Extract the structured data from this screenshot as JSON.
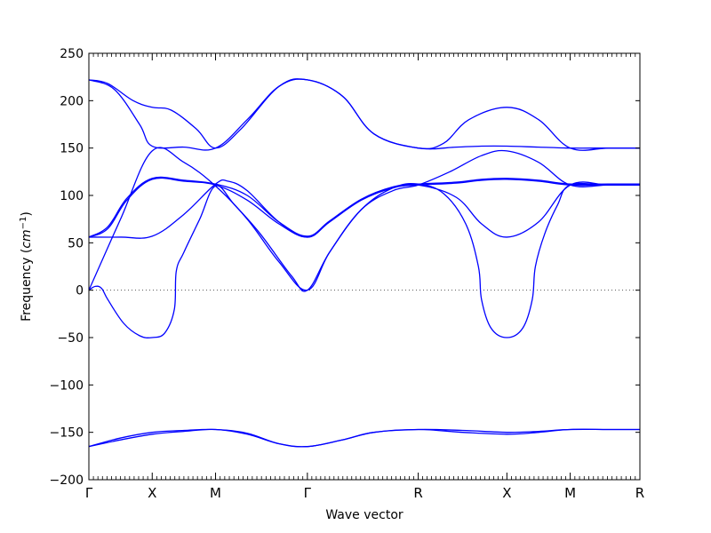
{
  "chart_data": {
    "type": "line",
    "title": "",
    "xlabel": "Wave vector",
    "ylabel_text": "Frequency (",
    "ylabel_unit_base": "cm",
    "ylabel_unit_exp": "−1",
    "ylabel_close": ")",
    "ylim": [
      -200,
      250
    ],
    "yticks": [
      250,
      200,
      150,
      100,
      50,
      0,
      -50,
      -100,
      -150,
      -200
    ],
    "ytick_labels": [
      "250",
      "200",
      "150",
      "100",
      "50",
      "0",
      "−50",
      "−100",
      "−150",
      "−200"
    ],
    "xlim": [
      0,
      8.7
    ],
    "high_symmetry_points": [
      {
        "label": "Γ",
        "x": 0
      },
      {
        "label": "X",
        "x": 1.0
      },
      {
        "label": "M",
        "x": 2.0
      },
      {
        "label": "Γ",
        "x": 3.45
      },
      {
        "label": "R",
        "x": 5.2
      },
      {
        "label": "X",
        "x": 6.6
      },
      {
        "label": "M",
        "x": 7.6
      },
      {
        "label": "R",
        "x": 8.7
      }
    ],
    "zero_line": true,
    "line_color": "#0000ff",
    "series": [
      {
        "values": [
          [
            0,
            -165
          ],
          [
            0.5,
            -158
          ],
          [
            1.0,
            -152
          ],
          [
            1.5,
            -149
          ],
          [
            2.0,
            -147
          ],
          [
            2.5,
            -152
          ],
          [
            3.0,
            -162
          ],
          [
            3.45,
            -165
          ],
          [
            4.0,
            -158
          ],
          [
            4.5,
            -150
          ],
          [
            5.2,
            -147
          ],
          [
            5.9,
            -150
          ],
          [
            6.6,
            -152
          ],
          [
            7.1,
            -150
          ],
          [
            7.6,
            -147
          ],
          [
            8.2,
            -147
          ],
          [
            8.7,
            -147
          ]
        ]
      },
      {
        "values": [
          [
            0,
            -165
          ],
          [
            0.5,
            -156
          ],
          [
            1.0,
            -150
          ],
          [
            1.5,
            -148
          ],
          [
            2.0,
            -147
          ],
          [
            2.5,
            -151
          ],
          [
            3.0,
            -162
          ],
          [
            3.45,
            -165
          ],
          [
            4.0,
            -158
          ],
          [
            4.5,
            -150
          ],
          [
            5.2,
            -147
          ],
          [
            5.9,
            -148
          ],
          [
            6.6,
            -150
          ],
          [
            7.1,
            -149
          ],
          [
            7.6,
            -147
          ],
          [
            8.2,
            -147
          ],
          [
            8.7,
            -147
          ]
        ]
      },
      {
        "values": [
          [
            0,
            0
          ],
          [
            0.1,
            4
          ],
          [
            0.2,
            2
          ],
          [
            0.3,
            -10
          ],
          [
            0.55,
            -35
          ],
          [
            0.8,
            -48
          ],
          [
            1.0,
            -50
          ],
          [
            1.2,
            -45
          ],
          [
            1.35,
            -20
          ],
          [
            1.38,
            20
          ],
          [
            1.5,
            40
          ],
          [
            1.75,
            75
          ],
          [
            2.0,
            110
          ],
          [
            2.3,
            90
          ],
          [
            2.7,
            60
          ],
          [
            3.2,
            15
          ],
          [
            3.45,
            0
          ],
          [
            3.8,
            40
          ],
          [
            4.3,
            85
          ],
          [
            4.8,
            108
          ],
          [
            5.2,
            112
          ],
          [
            5.6,
            102
          ],
          [
            5.95,
            70
          ],
          [
            6.15,
            25
          ],
          [
            6.2,
            -10
          ],
          [
            6.35,
            -40
          ],
          [
            6.6,
            -50
          ],
          [
            6.85,
            -40
          ],
          [
            7.0,
            -10
          ],
          [
            7.05,
            25
          ],
          [
            7.2,
            60
          ],
          [
            7.4,
            90
          ],
          [
            7.6,
            111
          ],
          [
            8.2,
            111
          ],
          [
            8.7,
            111
          ]
        ]
      },
      {
        "values": [
          [
            0,
            0
          ],
          [
            0.5,
            75
          ],
          [
            1.0,
            147
          ],
          [
            1.5,
            135
          ],
          [
            2.0,
            110
          ],
          [
            2.5,
            75
          ],
          [
            3.0,
            30
          ],
          [
            3.45,
            0
          ],
          [
            3.8,
            40
          ],
          [
            4.3,
            85
          ],
          [
            4.8,
            105
          ],
          [
            5.2,
            111
          ],
          [
            5.7,
            125
          ],
          [
            6.2,
            142
          ],
          [
            6.6,
            147
          ],
          [
            7.1,
            135
          ],
          [
            7.6,
            111
          ],
          [
            8.2,
            111
          ],
          [
            8.7,
            111
          ]
        ]
      },
      {
        "values": [
          [
            0,
            56
          ],
          [
            0.5,
            56
          ],
          [
            1.0,
            57
          ],
          [
            1.5,
            80
          ],
          [
            2.0,
            112
          ],
          [
            2.2,
            115
          ],
          [
            2.5,
            105
          ],
          [
            3.0,
            72
          ],
          [
            3.45,
            56
          ],
          [
            3.8,
            72
          ],
          [
            4.3,
            95
          ],
          [
            4.8,
            108
          ],
          [
            5.2,
            111
          ],
          [
            5.8,
            98
          ],
          [
            6.2,
            70
          ],
          [
            6.6,
            56
          ],
          [
            7.1,
            72
          ],
          [
            7.6,
            111
          ],
          [
            8.2,
            111
          ],
          [
            8.7,
            111
          ]
        ]
      },
      {
        "values": [
          [
            0,
            56
          ],
          [
            0.3,
            65
          ],
          [
            0.6,
            95
          ],
          [
            1.0,
            117
          ],
          [
            1.5,
            115
          ],
          [
            2.0,
            111
          ],
          [
            2.5,
            95
          ],
          [
            3.0,
            70
          ],
          [
            3.45,
            56
          ],
          [
            3.8,
            72
          ],
          [
            4.3,
            95
          ],
          [
            4.8,
            108
          ],
          [
            5.2,
            111
          ],
          [
            5.8,
            113
          ],
          [
            6.2,
            116
          ],
          [
            6.6,
            117
          ],
          [
            7.1,
            115
          ],
          [
            7.6,
            111
          ],
          [
            8.2,
            111
          ],
          [
            8.7,
            111
          ]
        ]
      },
      {
        "values": [
          [
            0,
            56
          ],
          [
            0.3,
            67
          ],
          [
            0.6,
            97
          ],
          [
            1.0,
            118
          ],
          [
            1.5,
            116
          ],
          [
            2.0,
            112
          ],
          [
            2.5,
            100
          ],
          [
            3.0,
            72
          ],
          [
            3.45,
            57
          ],
          [
            3.8,
            73
          ],
          [
            4.3,
            96
          ],
          [
            4.8,
            109
          ],
          [
            5.2,
            112
          ],
          [
            5.8,
            114
          ],
          [
            6.2,
            117
          ],
          [
            6.6,
            118
          ],
          [
            7.1,
            116
          ],
          [
            7.6,
            112
          ],
          [
            8.2,
            112
          ],
          [
            8.7,
            112
          ]
        ]
      },
      {
        "values": [
          [
            0,
            222
          ],
          [
            0.4,
            212
          ],
          [
            0.8,
            175
          ],
          [
            1.0,
            152
          ],
          [
            1.5,
            151
          ],
          [
            2.0,
            150
          ],
          [
            2.5,
            180
          ],
          [
            3.0,
            215
          ],
          [
            3.45,
            222
          ],
          [
            4.0,
            205
          ],
          [
            4.5,
            165
          ],
          [
            5.2,
            150
          ],
          [
            5.8,
            151
          ],
          [
            6.2,
            152
          ],
          [
            6.6,
            152
          ],
          [
            7.1,
            151
          ],
          [
            7.6,
            150
          ],
          [
            8.2,
            150
          ],
          [
            8.7,
            150
          ]
        ]
      },
      {
        "values": [
          [
            0,
            222
          ],
          [
            0.3,
            218
          ],
          [
            0.7,
            200
          ],
          [
            1.0,
            193
          ],
          [
            1.3,
            190
          ],
          [
            1.7,
            170
          ],
          [
            2.0,
            150
          ],
          [
            2.4,
            170
          ],
          [
            3.0,
            215
          ],
          [
            3.45,
            222
          ],
          [
            4.0,
            205
          ],
          [
            4.5,
            165
          ],
          [
            5.2,
            150
          ],
          [
            5.6,
            155
          ],
          [
            6.0,
            180
          ],
          [
            6.6,
            193
          ],
          [
            7.1,
            180
          ],
          [
            7.6,
            150
          ],
          [
            8.2,
            150
          ],
          [
            8.7,
            150
          ]
        ]
      }
    ]
  }
}
